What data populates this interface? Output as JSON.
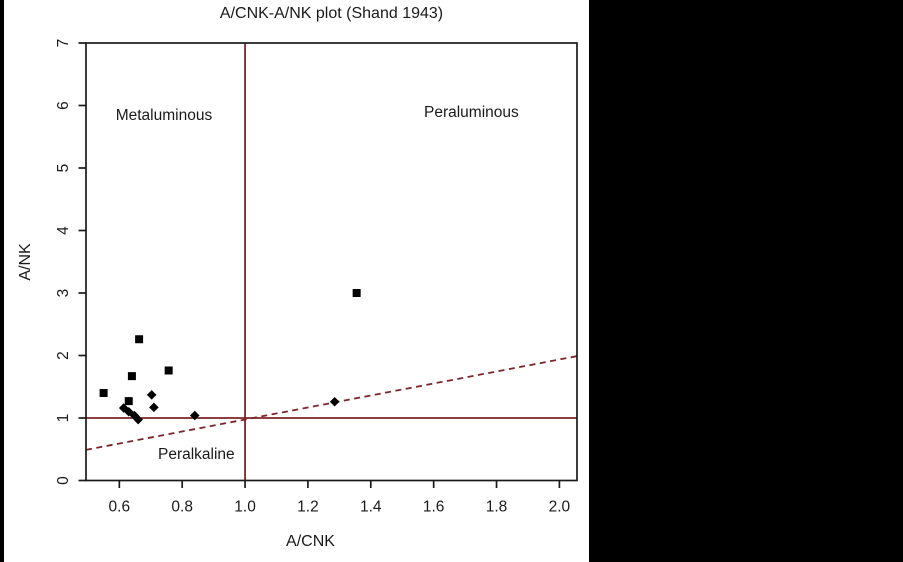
{
  "chart_data": {
    "type": "scatter",
    "title": "A/CNK-A/NK plot (Shand 1943)",
    "xlabel": "A/CNK",
    "ylabel": "A/NK",
    "xlim": [
      0.494,
      2.056
    ],
    "ylim": [
      0,
      7
    ],
    "x_ticks": [
      0.6,
      0.8,
      1.0,
      1.2,
      1.4,
      1.6,
      1.8,
      2.0
    ],
    "x_tick_labels": [
      "0.6",
      "0.8",
      "1.0",
      "1.2",
      "1.4",
      "1.6",
      "1.8",
      "2.0"
    ],
    "y_ticks": [
      0,
      1,
      2,
      3,
      4,
      5,
      6,
      7
    ],
    "y_tick_labels": [
      "0",
      "1",
      "2",
      "3",
      "4",
      "5",
      "6",
      "7"
    ],
    "grid": false,
    "legend": null,
    "axis_color": "#1a1a1a",
    "series": [
      {
        "name": "square-samples",
        "marker": "square",
        "color": "#000000",
        "points": [
          [
            0.55,
            1.4
          ],
          [
            0.63,
            1.27
          ],
          [
            0.64,
            1.67
          ],
          [
            0.663,
            2.26
          ],
          [
            0.757,
            1.76
          ],
          [
            1.355,
            3.0
          ]
        ]
      },
      {
        "name": "diamond-samples",
        "marker": "diamond",
        "color": "#000000",
        "points": [
          [
            0.614,
            1.16
          ],
          [
            0.63,
            1.1
          ],
          [
            0.648,
            1.04
          ],
          [
            0.66,
            0.975
          ],
          [
            0.703,
            1.37
          ],
          [
            0.71,
            1.17
          ],
          [
            0.84,
            1.04
          ],
          [
            1.285,
            1.26
          ]
        ]
      }
    ],
    "reference_lines": [
      {
        "name": "acnk-equals-1-vertical",
        "type": "vertical",
        "x": 1.0,
        "style": "solid",
        "color": "#7d2528"
      },
      {
        "name": "ank-equals-1-horizontal",
        "type": "horizontal",
        "y": 1.0,
        "style": "solid",
        "color": "#7d2528"
      },
      {
        "name": "one-to-one-boundary",
        "type": "segment",
        "from": [
          0.494,
          0.49
        ],
        "to": [
          2.056,
          1.99
        ],
        "style": "dashed",
        "color": "#7d2528"
      }
    ],
    "annotations": [
      {
        "text": "Metaluminous",
        "x": 0.742,
        "y": 5.84
      },
      {
        "text": "Peraluminous",
        "x": 1.72,
        "y": 5.88
      },
      {
        "text": "Peralkaline",
        "x": 0.845,
        "y": 0.41
      }
    ]
  }
}
